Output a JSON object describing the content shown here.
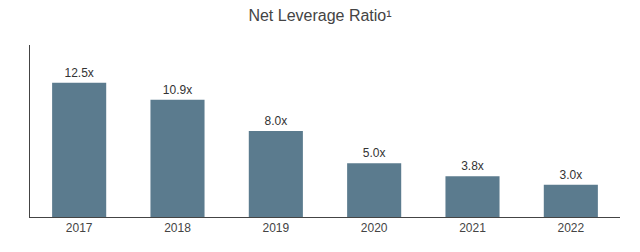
{
  "chart_data": {
    "type": "bar",
    "title": "Net Leverage Ratio¹",
    "categories": [
      "2017",
      "2018",
      "2019",
      "2020",
      "2021",
      "2022"
    ],
    "values": [
      12.5,
      10.9,
      8.0,
      5.0,
      3.8,
      3.0
    ],
    "value_labels": [
      "12.5x",
      "10.9x",
      "8.0x",
      "5.0x",
      "3.8x",
      "3.0x"
    ],
    "data_labels": true,
    "color": "#5b7b8e",
    "ylim": [
      0,
      16
    ],
    "grid": false,
    "tick_labels": "x"
  }
}
